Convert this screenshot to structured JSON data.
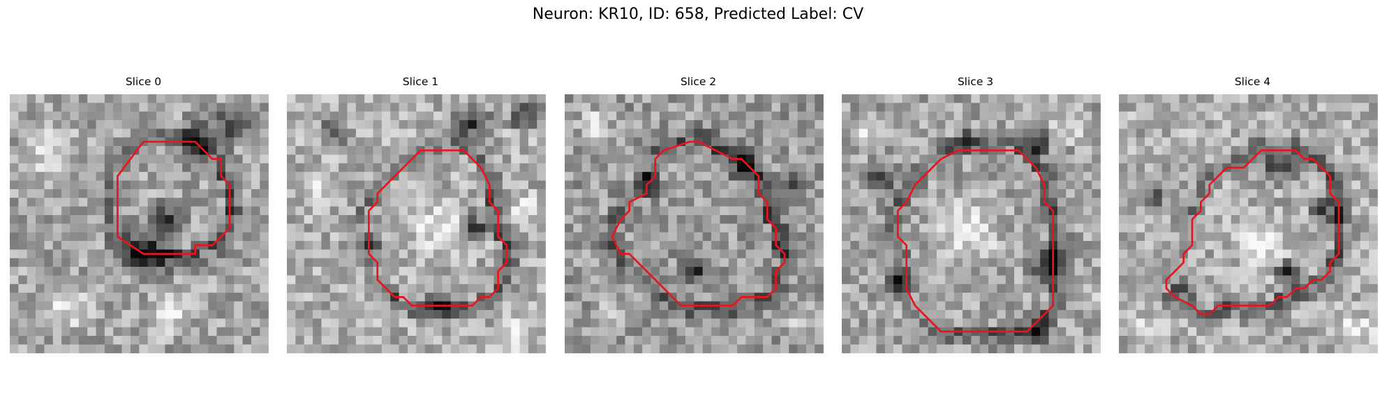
{
  "figure": {
    "title": "Neuron: KR10, ID: 658, Predicted Label: CV"
  },
  "slices": [
    {
      "title": "Slice 0",
      "contour": [
        [
          15,
          5
        ],
        [
          21,
          5
        ],
        [
          23,
          7
        ],
        [
          24,
          7
        ],
        [
          24,
          9
        ],
        [
          25,
          10
        ],
        [
          25,
          15
        ],
        [
          23,
          17
        ],
        [
          21,
          17
        ],
        [
          21,
          18
        ],
        [
          15,
          18
        ],
        [
          12,
          16
        ],
        [
          12,
          9
        ]
      ],
      "dark_blobs": [
        [
          15.5,
          17.5,
          4.5
        ],
        [
          18,
          14,
          3
        ],
        [
          21,
          5,
          3.5
        ],
        [
          25,
          3,
          3
        ]
      ],
      "bright_blobs": [
        [
          4,
          6,
          4
        ],
        [
          6,
          24,
          4
        ],
        [
          18,
          25,
          3.5
        ]
      ],
      "base": 165
    },
    {
      "title": "Slice 1",
      "contour": [
        [
          15,
          6
        ],
        [
          20,
          6
        ],
        [
          21,
          7
        ],
        [
          22,
          8
        ],
        [
          23,
          10
        ],
        [
          23,
          12
        ],
        [
          24,
          13
        ],
        [
          24,
          16
        ],
        [
          25,
          17
        ],
        [
          25,
          19
        ],
        [
          24,
          20
        ],
        [
          24,
          22
        ],
        [
          23,
          23
        ],
        [
          22,
          23
        ],
        [
          21,
          24
        ],
        [
          20,
          24
        ],
        [
          14,
          24
        ],
        [
          13,
          23
        ],
        [
          12,
          23
        ],
        [
          10,
          21
        ],
        [
          10,
          19
        ],
        [
          9,
          18
        ],
        [
          9,
          13
        ],
        [
          10,
          12
        ],
        [
          10,
          11
        ]
      ],
      "dark_blobs": [
        [
          21.5,
          15,
          2.5
        ],
        [
          17,
          23.5,
          2.5
        ],
        [
          9.5,
          17,
          2
        ],
        [
          5,
          4,
          2.5
        ],
        [
          21,
          3,
          3
        ],
        [
          27,
          2,
          2.5
        ]
      ],
      "bright_blobs": [
        [
          17,
          15,
          4
        ],
        [
          3,
          10,
          2.5
        ],
        [
          27,
          13,
          2.5
        ],
        [
          26,
          27,
          3
        ]
      ],
      "base": 175
    },
    {
      "title": "Slice 2",
      "contour": [
        [
          14,
          5
        ],
        [
          15,
          5
        ],
        [
          17,
          6
        ],
        [
          19,
          7
        ],
        [
          20,
          7
        ],
        [
          22,
          9
        ],
        [
          22,
          11
        ],
        [
          23,
          12
        ],
        [
          23,
          14
        ],
        [
          24,
          15
        ],
        [
          24,
          17
        ],
        [
          25,
          18
        ],
        [
          25,
          19
        ],
        [
          24,
          20
        ],
        [
          24,
          22
        ],
        [
          23,
          23
        ],
        [
          20,
          23
        ],
        [
          19,
          24
        ],
        [
          13,
          24
        ],
        [
          12,
          23
        ],
        [
          10,
          21
        ],
        [
          7,
          18
        ],
        [
          6,
          18
        ],
        [
          5,
          16
        ],
        [
          6,
          14
        ],
        [
          7,
          13
        ],
        [
          7,
          12
        ],
        [
          9,
          11
        ],
        [
          9,
          10
        ],
        [
          10,
          9
        ],
        [
          10,
          7
        ],
        [
          11,
          6
        ]
      ],
      "dark_blobs": [
        [
          20,
          8,
          2.5
        ],
        [
          15,
          20,
          2.5
        ],
        [
          9,
          10,
          2
        ],
        [
          26,
          9,
          2
        ]
      ],
      "bright_blobs": [
        [
          3,
          3,
          2.5
        ],
        [
          27,
          26,
          2.5
        ],
        [
          5,
          25,
          2
        ]
      ],
      "base": 155
    },
    {
      "title": "Slice 3",
      "contour": [
        [
          13,
          6
        ],
        [
          20,
          6
        ],
        [
          21,
          7
        ],
        [
          22,
          8
        ],
        [
          23,
          10
        ],
        [
          23,
          12
        ],
        [
          24,
          13
        ],
        [
          24,
          24
        ],
        [
          23,
          25
        ],
        [
          22,
          26
        ],
        [
          21,
          27
        ],
        [
          11,
          27
        ],
        [
          8,
          24
        ],
        [
          7,
          22
        ],
        [
          7,
          17
        ],
        [
          6,
          16
        ],
        [
          6,
          13
        ],
        [
          7,
          12
        ],
        [
          8,
          10
        ],
        [
          9,
          9
        ],
        [
          10,
          8
        ],
        [
          11,
          7
        ]
      ],
      "dark_blobs": [
        [
          23.5,
          19,
          3
        ],
        [
          22,
          27,
          2.5
        ],
        [
          6,
          21,
          2
        ],
        [
          4,
          9,
          2.5
        ],
        [
          22,
          5,
          2.5
        ],
        [
          14,
          5,
          2
        ]
      ],
      "bright_blobs": [
        [
          14,
          15,
          5.5
        ],
        [
          2,
          4,
          2.5
        ],
        [
          26,
          3,
          2.5
        ],
        [
          28,
          22,
          2
        ]
      ],
      "base": 165
    },
    {
      "title": "Slice 4",
      "contour": [
        [
          16,
          6
        ],
        [
          20,
          6
        ],
        [
          21,
          7
        ],
        [
          22,
          7
        ],
        [
          24,
          9
        ],
        [
          24,
          11
        ],
        [
          25,
          12
        ],
        [
          25,
          18
        ],
        [
          24,
          19
        ],
        [
          24,
          20
        ],
        [
          23,
          21
        ],
        [
          22,
          21
        ],
        [
          21,
          22
        ],
        [
          20,
          22
        ],
        [
          19,
          23
        ],
        [
          18,
          23
        ],
        [
          17,
          24
        ],
        [
          11,
          24
        ],
        [
          10,
          25
        ],
        [
          9,
          25
        ],
        [
          8,
          24
        ],
        [
          6,
          23
        ],
        [
          5,
          22
        ],
        [
          5,
          21
        ],
        [
          6,
          20
        ],
        [
          7,
          19
        ],
        [
          7,
          18
        ],
        [
          8,
          17
        ],
        [
          8,
          14
        ],
        [
          9,
          13
        ],
        [
          9,
          12
        ],
        [
          10,
          11
        ],
        [
          10,
          10
        ],
        [
          11,
          9
        ],
        [
          12,
          8
        ],
        [
          14,
          8
        ],
        [
          15,
          7
        ]
      ],
      "dark_blobs": [
        [
          23.5,
          13,
          2.5
        ],
        [
          18,
          8,
          3
        ],
        [
          4,
          11,
          2
        ],
        [
          7,
          22,
          2
        ],
        [
          19,
          20,
          2
        ]
      ],
      "bright_blobs": [
        [
          16,
          17,
          3.5
        ],
        [
          27,
          27,
          3
        ],
        [
          3,
          27,
          2.5
        ]
      ],
      "base": 175
    }
  ]
}
